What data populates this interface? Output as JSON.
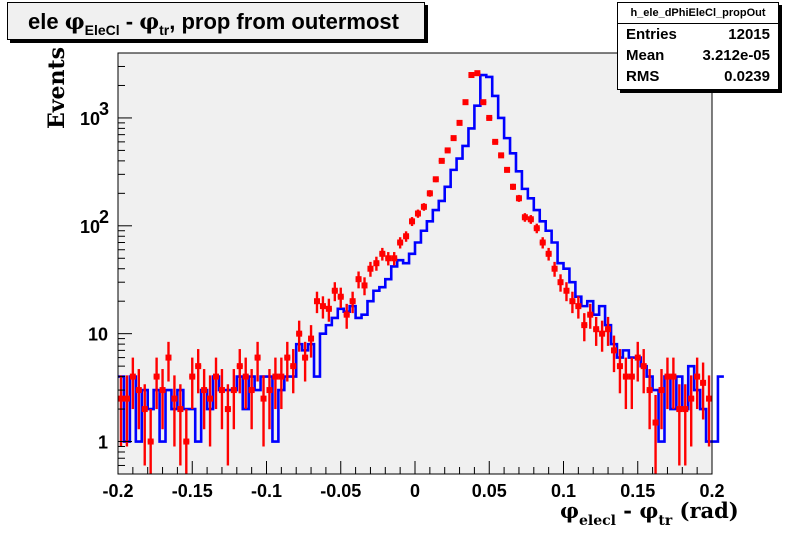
{
  "chart_data": {
    "type": "histogram",
    "title_parts": {
      "pre": "ele ",
      "phi": "φ",
      "sub1": "EleCl",
      "mid": " - ",
      "sub2": "tr",
      "post": ", prop from outermost"
    },
    "stats": {
      "name": "h_ele_dPhiEleCl_propOut",
      "rows": [
        {
          "label": "Entries",
          "value": "12015"
        },
        {
          "label": "Mean",
          "value": "3.212e-05"
        },
        {
          "label": "RMS",
          "value": "0.0239"
        }
      ]
    },
    "xlabel_parts": {
      "phi1": "φ",
      "sub1": "elecl",
      "mid": " - ",
      "phi2": "φ",
      "sub2": "tr",
      "post": " (rad)"
    },
    "ylabel": "Events",
    "xlim": [
      -0.2,
      0.2
    ],
    "ylim": [
      0.5,
      4000
    ],
    "yscale": "log",
    "grid": false,
    "x_ticks": [
      {
        "value": -0.2,
        "label": "-0.2"
      },
      {
        "value": -0.15,
        "label": "-0.15"
      },
      {
        "value": -0.1,
        "label": "-0.1"
      },
      {
        "value": -0.05,
        "label": "-0.05"
      },
      {
        "value": 0,
        "label": "0"
      },
      {
        "value": 0.05,
        "label": "0.05"
      },
      {
        "value": 0.1,
        "label": "0.1"
      },
      {
        "value": 0.15,
        "label": "0.15"
      },
      {
        "value": 0.2,
        "label": "0.2"
      }
    ],
    "y_ticks": [
      {
        "value": 1,
        "label": "1"
      },
      {
        "value": 10,
        "label": "10"
      },
      {
        "value": 100,
        "label": "10",
        "exp": "2"
      },
      {
        "value": 1000,
        "label": "10",
        "exp": "3"
      }
    ],
    "bin_edges": {
      "start": -0.2,
      "step": 0.004,
      "count": 100
    },
    "series": [
      {
        "style": "step",
        "color": "#0000ff",
        "values": [
          4,
          1,
          4,
          1,
          3,
          2,
          3,
          1,
          3,
          2,
          3,
          2,
          2,
          1,
          3,
          2,
          4,
          3,
          3,
          3,
          4,
          2,
          4,
          3,
          4,
          4,
          1,
          3,
          4,
          4,
          8,
          7,
          8,
          4,
          10,
          12,
          14,
          17,
          16,
          18,
          14,
          15,
          20,
          25,
          27,
          32,
          42,
          48,
          45,
          55,
          70,
          90,
          110,
          140,
          170,
          230,
          330,
          420,
          550,
          800,
          1300,
          2500,
          2400,
          1600,
          1000,
          650,
          470,
          320,
          220,
          180,
          140,
          110,
          90,
          70,
          45,
          40,
          30,
          22,
          18,
          20,
          15,
          18,
          12,
          8,
          6,
          7,
          6,
          6,
          5,
          4,
          3,
          1,
          4,
          2,
          4,
          2,
          5,
          3,
          2,
          1,
          1,
          4
        ]
      },
      {
        "style": "points",
        "color": "#ff0000",
        "values": [
          2.5,
          2.5,
          4,
          3,
          2,
          1,
          4,
          3,
          6,
          2.5,
          2,
          1,
          4,
          5,
          3,
          2.5,
          4,
          3,
          2,
          3,
          5,
          4,
          3,
          6,
          2.5,
          3,
          4,
          4,
          6,
          5,
          10,
          6,
          9,
          20,
          18,
          17,
          25,
          22,
          15,
          20,
          32,
          28,
          40,
          45,
          55,
          50,
          50,
          70,
          80,
          110,
          130,
          150,
          200,
          270,
          400,
          500,
          650,
          900,
          1400,
          2500,
          2600,
          1400,
          1000,
          600,
          450,
          330,
          230,
          180,
          120,
          115,
          95,
          70,
          55,
          40,
          30,
          25,
          20,
          18,
          12,
          15,
          11,
          10,
          11,
          7,
          5,
          4,
          4,
          6,
          5,
          3,
          1.5,
          3,
          4,
          4,
          2,
          2,
          2.5,
          4,
          3.5,
          2.5
        ],
        "errors": [
          1.6,
          1.6,
          2,
          1.7,
          1.4,
          1,
          2,
          1.7,
          2.4,
          1.6,
          1.4,
          1,
          2,
          2.2,
          1.7,
          1.6,
          2,
          1.7,
          1.4,
          1.7,
          2.2,
          2,
          1.7,
          2.4,
          1.6,
          1.7,
          2,
          2,
          2.4,
          2.2,
          3.2,
          2.4,
          3,
          4.5,
          4.2,
          4.1,
          5,
          4.7,
          3.9,
          4.5,
          5.7,
          5.3,
          6.3,
          6.7,
          7.4,
          7.1,
          7.1,
          8.4,
          8.9,
          10.5,
          11.4,
          12.2,
          14.1,
          16.4,
          20,
          22.4,
          25.5,
          30,
          37.4,
          50,
          51,
          37.4,
          31.6,
          24.5,
          21.2,
          18.2,
          15.2,
          13.4,
          11,
          10.7,
          9.7,
          8.4,
          7.4,
          6.3,
          5.5,
          5,
          4.5,
          4.2,
          3.5,
          3.9,
          3.3,
          3.2,
          3.3,
          2.6,
          2.2,
          2,
          2,
          2.4,
          2.2,
          1.7,
          1.2,
          1.7,
          2,
          2,
          1.4,
          1.4,
          1.6,
          2,
          1.9,
          1.6
        ]
      }
    ]
  }
}
